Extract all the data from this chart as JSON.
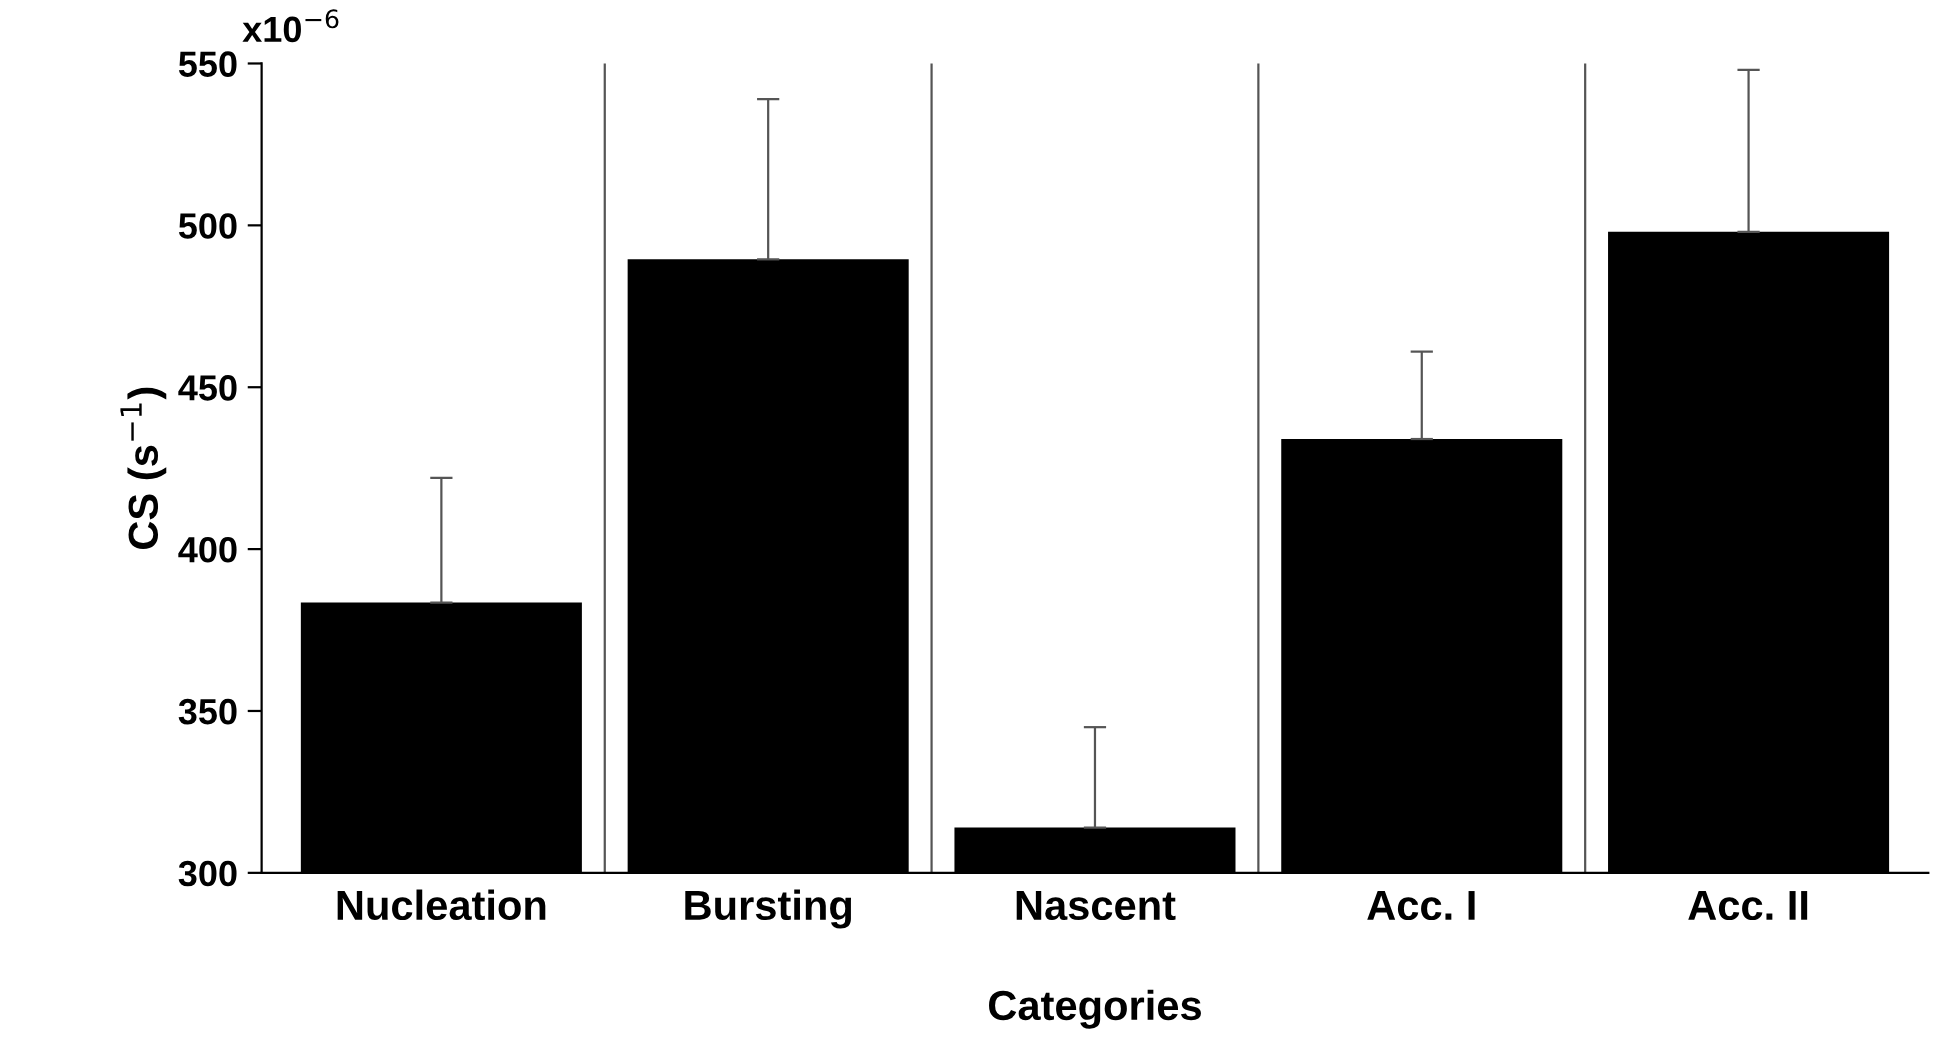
{
  "chart_data": {
    "type": "bar",
    "xlabel": "Categories",
    "ylabel": "CS (s$^{−1}$)",
    "categories": [
      "Nucleation",
      "Bursting",
      "Nascent",
      "Acc. I",
      "Acc. II"
    ],
    "values": [
      383.5,
      489.5,
      314,
      434,
      498
    ],
    "errors": [
      [
        383.5,
        422
      ],
      [
        489.5,
        539
      ],
      [
        314,
        345
      ],
      [
        434,
        461
      ],
      [
        498,
        548
      ]
    ],
    "color": "#000000",
    "ylim": [
      300,
      550
    ],
    "yticks": [
      300,
      350,
      400,
      450,
      500,
      550
    ],
    "annotations": [
      "x10$^{−6}$"
    ],
    "grid": "x"
  }
}
